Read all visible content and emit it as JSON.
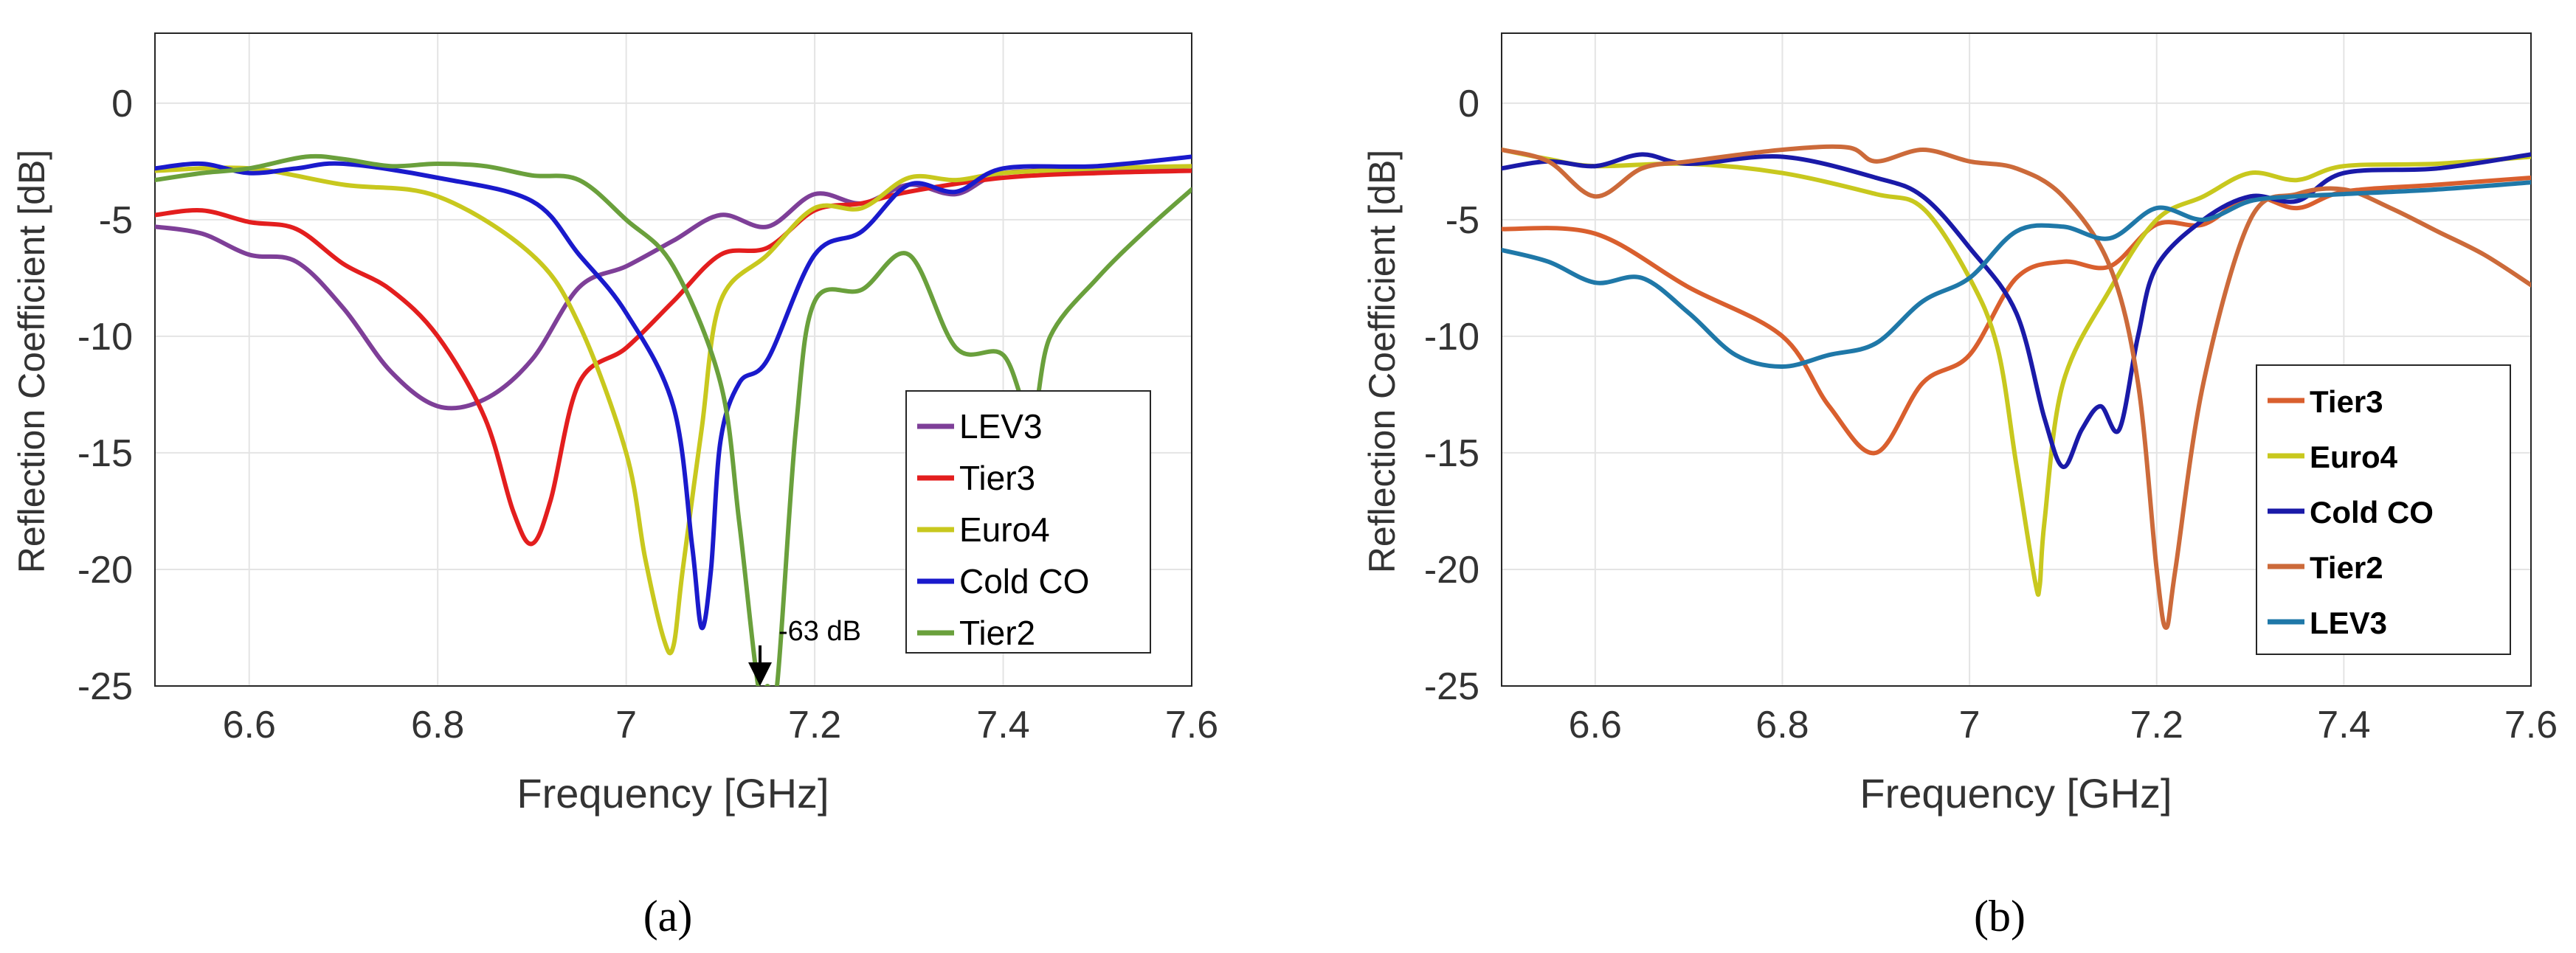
{
  "chart_data": [
    {
      "panel": "(a)",
      "type": "line",
      "xlabel": "Frequency [GHz]",
      "ylabel": "Reflection Coefficient [dB]",
      "xlim": [
        6.5,
        7.6
      ],
      "ylim": [
        -25,
        3
      ],
      "xticks": [
        6.6,
        6.8,
        7,
        7.2,
        7.4,
        7.6
      ],
      "yticks": [
        0,
        -5,
        -10,
        -15,
        -20,
        -25
      ],
      "grid": true,
      "legend_position": "bottom-right",
      "legend_bold": false,
      "annotation": {
        "text": "-63 dB",
        "x": 7.15,
        "y": -25
      },
      "series": [
        {
          "name": "LEV3",
          "color": "#7e3f98",
          "x": [
            6.5,
            6.55,
            6.6,
            6.65,
            6.7,
            6.75,
            6.8,
            6.85,
            6.9,
            6.95,
            7.0,
            7.05,
            7.1,
            7.15,
            7.2,
            7.25,
            7.3,
            7.35,
            7.4,
            7.5,
            7.6
          ],
          "y": [
            -5.3,
            -5.6,
            -6.5,
            -6.8,
            -8.8,
            -11.5,
            -13.0,
            -12.7,
            -11.0,
            -7.9,
            -7.0,
            -5.9,
            -4.8,
            -5.3,
            -3.9,
            -4.3,
            -3.5,
            -3.9,
            -3.0,
            -2.9,
            -2.9
          ]
        },
        {
          "name": "Tier3",
          "color": "#e31e1e",
          "x": [
            6.5,
            6.55,
            6.6,
            6.65,
            6.7,
            6.75,
            6.8,
            6.85,
            6.88,
            6.9,
            6.92,
            6.95,
            7.0,
            7.05,
            7.1,
            7.15,
            7.2,
            7.25,
            7.3,
            7.4,
            7.5,
            7.6
          ],
          "y": [
            -4.8,
            -4.6,
            -5.1,
            -5.4,
            -6.9,
            -8.0,
            -10.0,
            -13.5,
            -17.5,
            -18.9,
            -17.0,
            -12.0,
            -10.5,
            -8.5,
            -6.5,
            -6.2,
            -4.6,
            -4.3,
            -3.8,
            -3.2,
            -3.0,
            -2.9
          ]
        },
        {
          "name": "Euro4",
          "color": "#c8c81e",
          "x": [
            6.5,
            6.6,
            6.7,
            6.8,
            6.9,
            6.95,
            7.0,
            7.02,
            7.04,
            7.05,
            7.06,
            7.08,
            7.1,
            7.15,
            7.2,
            7.25,
            7.3,
            7.35,
            7.4,
            7.5,
            7.6
          ],
          "y": [
            -2.9,
            -2.8,
            -3.5,
            -4.0,
            -6.5,
            -9.5,
            -15.0,
            -19.5,
            -23.0,
            -23.3,
            -20.0,
            -14.0,
            -8.5,
            -6.5,
            -4.5,
            -4.5,
            -3.2,
            -3.3,
            -3.0,
            -2.8,
            -2.7
          ]
        },
        {
          "name": "Cold CO",
          "color": "#1a1acc",
          "x": [
            6.5,
            6.55,
            6.6,
            6.65,
            6.7,
            6.8,
            6.9,
            6.95,
            7.0,
            7.05,
            7.07,
            7.08,
            7.09,
            7.1,
            7.12,
            7.15,
            7.2,
            7.25,
            7.3,
            7.35,
            7.4,
            7.5,
            7.6
          ],
          "y": [
            -2.8,
            -2.6,
            -3.0,
            -2.8,
            -2.6,
            -3.2,
            -4.2,
            -6.5,
            -9.0,
            -13.0,
            -19.0,
            -22.5,
            -20.0,
            -14.5,
            -12.0,
            -11.0,
            -6.5,
            -5.5,
            -3.5,
            -3.8,
            -2.8,
            -2.7,
            -2.3
          ]
        },
        {
          "name": "Tier2",
          "color": "#6aa03c",
          "x": [
            6.5,
            6.55,
            6.6,
            6.66,
            6.7,
            6.75,
            6.8,
            6.85,
            6.9,
            6.95,
            7.0,
            7.05,
            7.1,
            7.12,
            7.14,
            7.15,
            7.16,
            7.18,
            7.2,
            7.25,
            7.3,
            7.35,
            7.4,
            7.43,
            7.45,
            7.5,
            7.55,
            7.6
          ],
          "y": [
            -3.3,
            -3.0,
            -2.8,
            -2.3,
            -2.4,
            -2.7,
            -2.6,
            -2.7,
            -3.1,
            -3.3,
            -5.0,
            -7.0,
            -12.0,
            -18.0,
            -25.0,
            -25.0,
            -25.0,
            -14.0,
            -8.5,
            -8.0,
            -6.5,
            -10.5,
            -10.8,
            -13.5,
            -10.0,
            -7.5,
            -5.5,
            -3.7
          ]
        }
      ]
    },
    {
      "panel": "(b)",
      "type": "line",
      "xlabel": "Frequency [GHz]",
      "ylabel": "Reflection Coefficient [dB]",
      "xlim": [
        6.5,
        7.6
      ],
      "ylim": [
        -25,
        3
      ],
      "xticks": [
        6.6,
        6.8,
        7,
        7.2,
        7.4,
        7.6
      ],
      "yticks": [
        0,
        -5,
        -10,
        -15,
        -20,
        -25
      ],
      "grid": true,
      "legend_position": "bottom-right",
      "legend_bold": true,
      "series": [
        {
          "name": "Tier3",
          "color": "#d95f2e",
          "x": [
            6.5,
            6.6,
            6.7,
            6.8,
            6.85,
            6.9,
            6.95,
            7.0,
            7.05,
            7.1,
            7.15,
            7.2,
            7.25,
            7.3,
            7.35,
            7.4,
            7.5,
            7.6
          ],
          "y": [
            -5.4,
            -5.6,
            -7.9,
            -10.0,
            -13.0,
            -15.0,
            -12.0,
            -10.8,
            -7.5,
            -6.8,
            -7.0,
            -5.2,
            -5.2,
            -4.0,
            -4.5,
            -3.8,
            -3.5,
            -3.2
          ]
        },
        {
          "name": "Euro4",
          "color": "#c8c81e",
          "x": [
            6.5,
            6.55,
            6.6,
            6.7,
            6.8,
            6.9,
            6.95,
            7.0,
            7.03,
            7.05,
            7.07,
            7.075,
            7.08,
            7.1,
            7.15,
            7.2,
            7.25,
            7.3,
            7.35,
            7.4,
            7.5,
            7.6
          ],
          "y": [
            -2.0,
            -2.4,
            -2.7,
            -2.6,
            -3.0,
            -3.9,
            -4.5,
            -7.5,
            -10.5,
            -15.5,
            -20.5,
            -20.7,
            -18.0,
            -12.0,
            -8.0,
            -5.0,
            -4.0,
            -3.0,
            -3.3,
            -2.7,
            -2.6,
            -2.3
          ]
        },
        {
          "name": "Cold  CO",
          "color": "#1a1aa8",
          "x": [
            6.5,
            6.55,
            6.6,
            6.65,
            6.7,
            6.8,
            6.9,
            6.95,
            7.0,
            7.05,
            7.08,
            7.1,
            7.12,
            7.14,
            7.16,
            7.18,
            7.2,
            7.25,
            7.3,
            7.35,
            7.4,
            7.5,
            7.6
          ],
          "y": [
            -2.8,
            -2.5,
            -2.7,
            -2.2,
            -2.6,
            -2.3,
            -3.2,
            -4.0,
            -6.2,
            -9.0,
            -13.5,
            -15.6,
            -14.0,
            -13.0,
            -14.0,
            -10.0,
            -7.0,
            -5.0,
            -4.0,
            -4.2,
            -3.0,
            -2.8,
            -2.2
          ]
        },
        {
          "name": "Tier2",
          "color": "#cc6a3a",
          "x": [
            6.5,
            6.55,
            6.6,
            6.65,
            6.7,
            6.8,
            6.87,
            6.9,
            6.95,
            7.0,
            7.05,
            7.1,
            7.15,
            7.18,
            7.2,
            7.21,
            7.22,
            7.25,
            7.3,
            7.35,
            7.4,
            7.45,
            7.5,
            7.55,
            7.6
          ],
          "y": [
            -2.0,
            -2.5,
            -4.0,
            -2.8,
            -2.5,
            -2.0,
            -1.9,
            -2.5,
            -2.0,
            -2.5,
            -2.8,
            -4.0,
            -7.0,
            -12.0,
            -20.0,
            -22.5,
            -20.0,
            -12.0,
            -5.0,
            -3.9,
            -3.7,
            -4.5,
            -5.5,
            -6.5,
            -7.8
          ]
        },
        {
          "name": "LEV3",
          "color": "#1f78a8",
          "x": [
            6.5,
            6.55,
            6.6,
            6.65,
            6.7,
            6.75,
            6.8,
            6.85,
            6.9,
            6.95,
            7.0,
            7.05,
            7.1,
            7.15,
            7.2,
            7.25,
            7.3,
            7.35,
            7.4,
            7.5,
            7.6
          ],
          "y": [
            -6.3,
            -6.8,
            -7.7,
            -7.5,
            -9.0,
            -10.8,
            -11.3,
            -10.8,
            -10.3,
            -8.5,
            -7.5,
            -5.5,
            -5.3,
            -5.8,
            -4.5,
            -5.0,
            -4.2,
            -4.0,
            -3.9,
            -3.7,
            -3.4
          ]
        }
      ]
    }
  ]
}
